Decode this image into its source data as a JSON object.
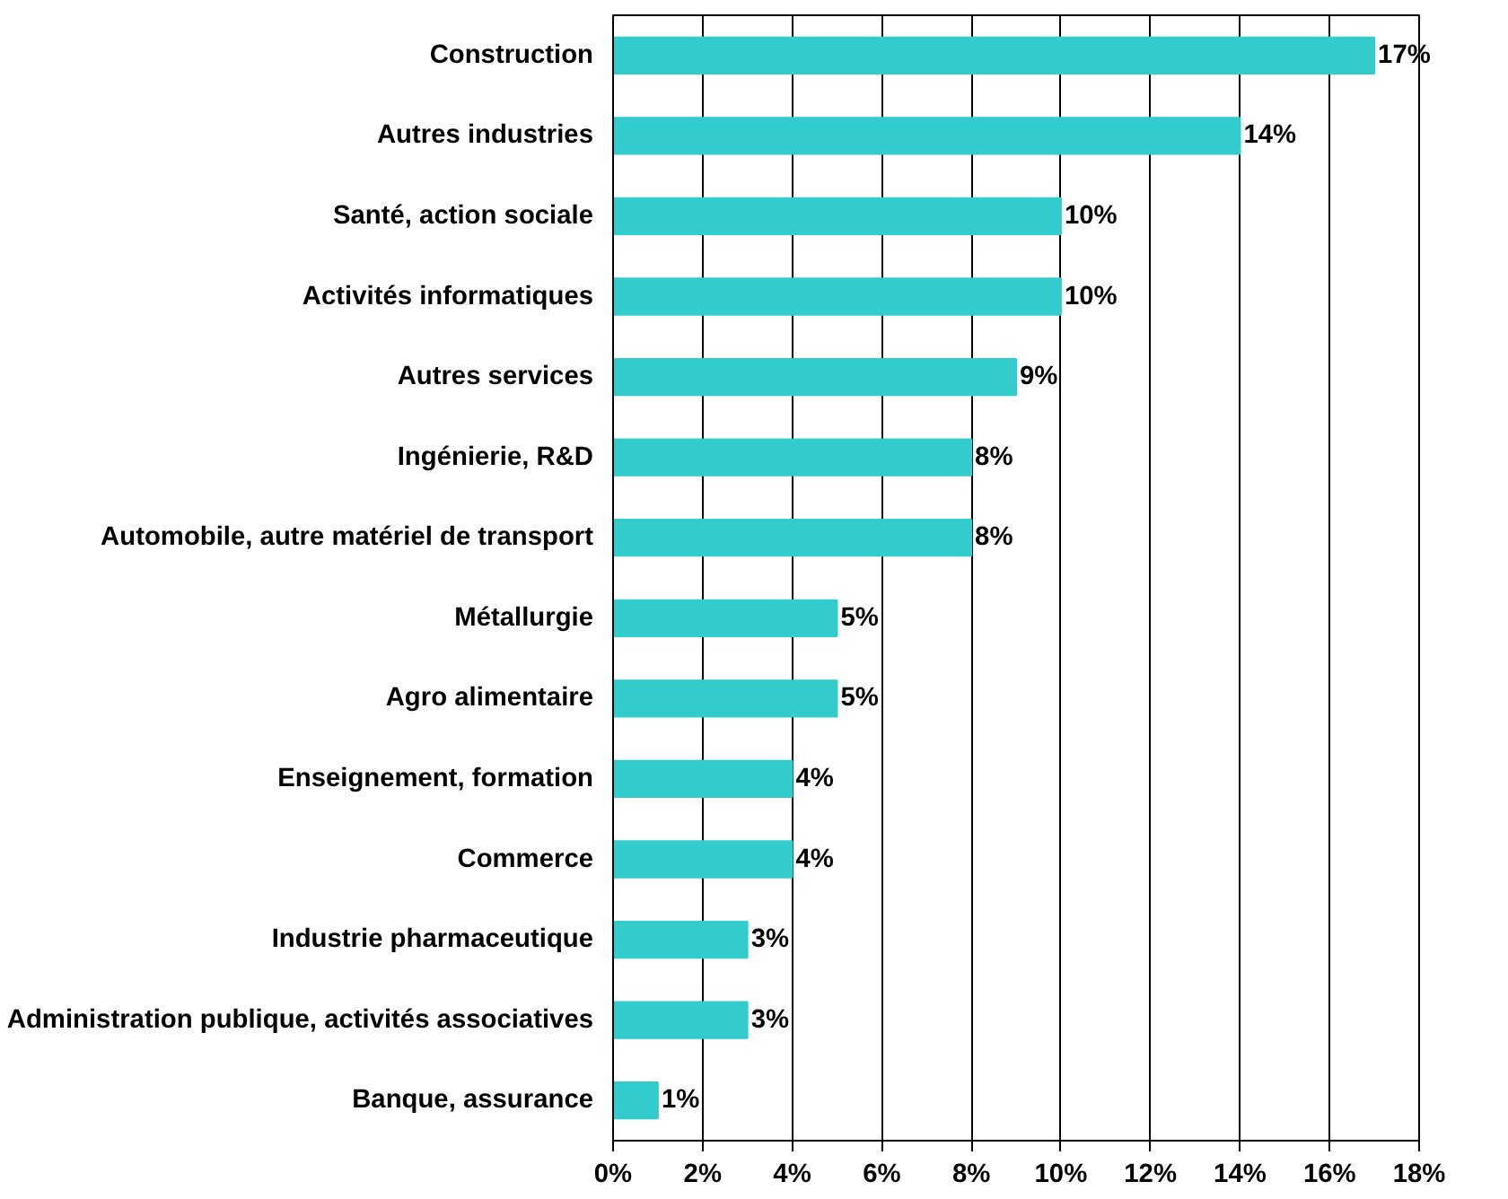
{
  "chart_data": {
    "type": "bar",
    "orientation": "horizontal",
    "categories": [
      "Construction",
      "Autres industries",
      "Santé, action sociale",
      "Activités informatiques",
      "Autres services",
      "Ingénierie, R&D",
      "Automobile, autre matériel de transport",
      "Métallurgie",
      "Agro alimentaire",
      "Enseignement, formation",
      "Commerce",
      "Industrie pharmaceutique",
      "Administration publique, activités associatives",
      "Banque, assurance"
    ],
    "values": [
      17,
      14,
      10,
      10,
      9,
      8,
      8,
      5,
      5,
      4,
      4,
      3,
      3,
      1
    ],
    "value_labels": [
      "17%",
      "14%",
      "10%",
      "10%",
      "9%",
      "8%",
      "8%",
      "5%",
      "5%",
      "4%",
      "4%",
      "3%",
      "3%",
      "1%"
    ],
    "color": "#33cccc",
    "xlim": [
      0,
      18
    ],
    "xticks": [
      {
        "value": 0,
        "label": "0%"
      },
      {
        "value": 2,
        "label": "2%"
      },
      {
        "value": 4,
        "label": "4%"
      },
      {
        "value": 6,
        "label": "6%"
      },
      {
        "value": 8,
        "label": "8%"
      },
      {
        "value": 10,
        "label": "10%"
      },
      {
        "value": 12,
        "label": "12%"
      },
      {
        "value": 14,
        "label": "14%"
      },
      {
        "value": 16,
        "label": "16%"
      },
      {
        "value": 18,
        "label": "18%"
      }
    ],
    "grid": "x"
  }
}
